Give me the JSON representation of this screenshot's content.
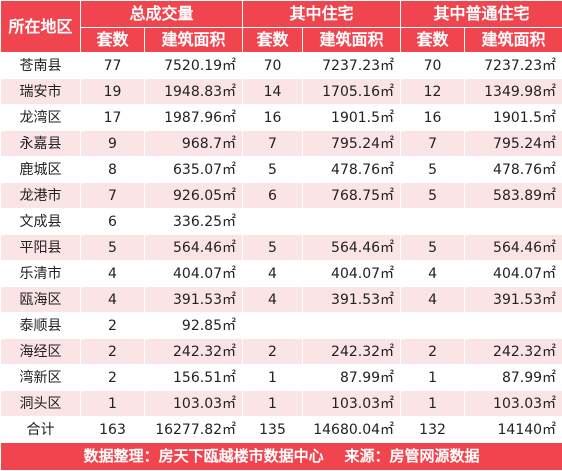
{
  "header": {
    "region_label": "所在地区",
    "group_total": "总成交量",
    "group_residential": "其中住宅",
    "group_ordinary": "其中普通住宅",
    "sub_count": "套数",
    "sub_area": "建筑面积"
  },
  "rows": [
    {
      "region": "苍南县",
      "t_cnt": "77",
      "t_area": "7520.19㎡",
      "r_cnt": "70",
      "r_area": "7237.23㎡",
      "o_cnt": "70",
      "o_area": "7237.23㎡"
    },
    {
      "region": "瑞安市",
      "t_cnt": "19",
      "t_area": "1948.83㎡",
      "r_cnt": "14",
      "r_area": "1705.16㎡",
      "o_cnt": "12",
      "o_area": "1349.98㎡"
    },
    {
      "region": "龙湾区",
      "t_cnt": "17",
      "t_area": "1987.96㎡",
      "r_cnt": "16",
      "r_area": "1901.5㎡",
      "o_cnt": "16",
      "o_area": "1901.5㎡"
    },
    {
      "region": "永嘉县",
      "t_cnt": "9",
      "t_area": "968.7㎡",
      "r_cnt": "7",
      "r_area": "795.24㎡",
      "o_cnt": "7",
      "o_area": "795.24㎡"
    },
    {
      "region": "鹿城区",
      "t_cnt": "8",
      "t_area": "635.07㎡",
      "r_cnt": "5",
      "r_area": "478.76㎡",
      "o_cnt": "5",
      "o_area": "478.76㎡"
    },
    {
      "region": "龙港市",
      "t_cnt": "7",
      "t_area": "926.05㎡",
      "r_cnt": "6",
      "r_area": "768.75㎡",
      "o_cnt": "5",
      "o_area": "583.89㎡"
    },
    {
      "region": "文成县",
      "t_cnt": "6",
      "t_area": "336.25㎡",
      "r_cnt": "",
      "r_area": "",
      "o_cnt": "",
      "o_area": ""
    },
    {
      "region": "平阳县",
      "t_cnt": "5",
      "t_area": "564.46㎡",
      "r_cnt": "5",
      "r_area": "564.46㎡",
      "o_cnt": "5",
      "o_area": "564.46㎡"
    },
    {
      "region": "乐清市",
      "t_cnt": "4",
      "t_area": "404.07㎡",
      "r_cnt": "4",
      "r_area": "404.07㎡",
      "o_cnt": "4",
      "o_area": "404.07㎡"
    },
    {
      "region": "瓯海区",
      "t_cnt": "4",
      "t_area": "391.53㎡",
      "r_cnt": "4",
      "r_area": "391.53㎡",
      "o_cnt": "4",
      "o_area": "391.53㎡"
    },
    {
      "region": "泰顺县",
      "t_cnt": "2",
      "t_area": "92.85㎡",
      "r_cnt": "",
      "r_area": "",
      "o_cnt": "",
      "o_area": ""
    },
    {
      "region": "海经区",
      "t_cnt": "2",
      "t_area": "242.32㎡",
      "r_cnt": "2",
      "r_area": "242.32㎡",
      "o_cnt": "2",
      "o_area": "242.32㎡"
    },
    {
      "region": "湾新区",
      "t_cnt": "2",
      "t_area": "156.51㎡",
      "r_cnt": "1",
      "r_area": "87.99㎡",
      "o_cnt": "1",
      "o_area": "87.99㎡"
    },
    {
      "region": "洞头区",
      "t_cnt": "1",
      "t_area": "103.03㎡",
      "r_cnt": "1",
      "r_area": "103.03㎡",
      "o_cnt": "1",
      "o_area": "103.03㎡"
    }
  ],
  "total": {
    "region": "合计",
    "t_cnt": "163",
    "t_area": "16277.82㎡",
    "r_cnt": "135",
    "r_area": "14680.04㎡",
    "o_cnt": "132",
    "o_area": "14140㎡"
  },
  "footer": {
    "text": "数据整理：房天下瓯越楼市数据中心    来源：房管网源数据"
  },
  "colors": {
    "header_bg": "#f0444f",
    "stripe_bg": "#fbe4e6"
  }
}
